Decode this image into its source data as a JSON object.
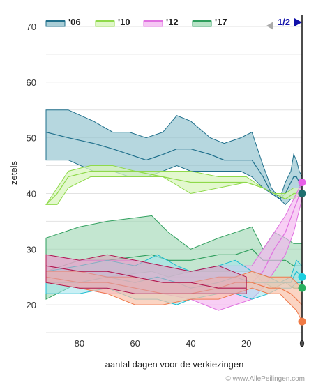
{
  "chart_data": {
    "type": "area",
    "title": "",
    "xlabel": "aantal dagen voor de verkiezingen",
    "ylabel": "zetels",
    "credit": "© www.AllePeilingen.com",
    "xlim": [
      92,
      0
    ],
    "ylim": [
      13,
      72
    ],
    "x_ticks": [
      80,
      60,
      40,
      20,
      0
    ],
    "y_ticks": [
      20,
      30,
      40,
      50,
      60,
      70
    ],
    "grid": "horizontal",
    "legend_position": "top",
    "legend": [
      {
        "label": "'06",
        "color": "#1f6f8b",
        "fill": "#a9cdd6"
      },
      {
        "label": "'10",
        "color": "#8fd94a",
        "fill": "#e0f7c8"
      },
      {
        "label": "'12",
        "color": "#e070e0",
        "fill": "#f6c7f4"
      },
      {
        "label": "'17",
        "color": "#2e9e5c",
        "fill": "#b7e3c6"
      }
    ],
    "pager": {
      "label": "1/2",
      "prev_color": "#aaaaaa",
      "next_color": "#1111aa"
    },
    "bands": [
      {
        "name": "'06",
        "color": "#1f6f8b",
        "fill": "#8fc1ce",
        "opacity": 0.65,
        "x": [
          92,
          84,
          75,
          68,
          62,
          56,
          50,
          45,
          40,
          33,
          28,
          22,
          18,
          14,
          11,
          8,
          6,
          4,
          3,
          2,
          1,
          0
        ],
        "upper": [
          55,
          55,
          53,
          51,
          51,
          50,
          51,
          54,
          53,
          50,
          49,
          50,
          51,
          45,
          41,
          39,
          42,
          44,
          47,
          46,
          44,
          43
        ],
        "lower": [
          46,
          46,
          44,
          44,
          43,
          43,
          44,
          45,
          44,
          44,
          44,
          44,
          43,
          41,
          40,
          39,
          38,
          39,
          39,
          40,
          40,
          40
        ],
        "mid": [
          51,
          50,
          49,
          48,
          47,
          46,
          47,
          48,
          48,
          47,
          46,
          46,
          46,
          43,
          40,
          39,
          40,
          42,
          43,
          43,
          42,
          40
        ]
      },
      {
        "name": "'10",
        "color": "#8fd94a",
        "fill": "#d9f5bd",
        "opacity": 0.75,
        "x": [
          92,
          88,
          84,
          76,
          68,
          60,
          50,
          40,
          30,
          20,
          14,
          10,
          6,
          3,
          0
        ],
        "upper": [
          38,
          41,
          44,
          45,
          45,
          44,
          44,
          44,
          43,
          43,
          41,
          40,
          40,
          41,
          41
        ],
        "lower": [
          38,
          38,
          41,
          43,
          43,
          43,
          43,
          40,
          41,
          42,
          41,
          40,
          39,
          39,
          40
        ],
        "mid": [
          38,
          40,
          43,
          44,
          44,
          44,
          43,
          42,
          42,
          42,
          41,
          40,
          39,
          40,
          40
        ]
      },
      {
        "name": "'17",
        "color": "#2e9e5c",
        "fill": "#9bd6b0",
        "opacity": 0.6,
        "x": [
          92,
          80,
          70,
          54,
          48,
          40,
          30,
          24,
          18,
          14,
          10,
          6,
          3,
          0
        ],
        "upper": [
          32,
          34,
          35,
          36,
          33,
          30,
          32,
          33,
          34,
          30,
          33,
          32,
          31,
          31
        ],
        "lower": [
          21,
          24,
          25,
          26,
          25,
          26,
          26,
          26,
          26,
          24,
          23,
          24,
          23,
          23
        ],
        "mid": [
          26,
          28,
          28,
          29,
          28,
          28,
          29,
          29,
          30,
          28,
          28,
          28,
          27,
          27
        ]
      },
      {
        "name": "'12",
        "color": "#e070e0",
        "fill": "#f4b6f0",
        "opacity": 0.65,
        "x": [
          92,
          80,
          70,
          60,
          50,
          40,
          30,
          24,
          18,
          14,
          10,
          6,
          3,
          0
        ],
        "upper": [
          29,
          28,
          28,
          28,
          27,
          26,
          27,
          27,
          27,
          30,
          33,
          36,
          39,
          42
        ],
        "lower": [
          24,
          23,
          22,
          22,
          22,
          21,
          19,
          20,
          21,
          23,
          26,
          29,
          33,
          39
        ],
        "mid": [
          27,
          26,
          25,
          25,
          24,
          24,
          23,
          24,
          24,
          26,
          30,
          33,
          37,
          41
        ]
      },
      {
        "name": "cyan",
        "color": "#19bccf",
        "fill": "#9fe4ec",
        "opacity": 0.55,
        "x": [
          92,
          80,
          70,
          60,
          52,
          45,
          40,
          30,
          24,
          18,
          12,
          8,
          4,
          2,
          0
        ],
        "upper": [
          26,
          27,
          28,
          27,
          29,
          27,
          26,
          27,
          28,
          26,
          25,
          24,
          25,
          28,
          27
        ],
        "lower": [
          22,
          22,
          23,
          21,
          21,
          20,
          21,
          22,
          22,
          21,
          22,
          23,
          23,
          24,
          24
        ],
        "mid": [
          24,
          24,
          25,
          24,
          25,
          24,
          23,
          24,
          25,
          24,
          24,
          24,
          24,
          26,
          25
        ]
      },
      {
        "name": "orange",
        "color": "#ef7a4c",
        "fill": "#f9c2aa",
        "opacity": 0.7,
        "x": [
          92,
          80,
          70,
          60,
          50,
          40,
          30,
          24,
          18,
          12,
          8,
          4,
          2,
          0
        ],
        "upper": [
          26,
          26,
          25,
          25,
          24,
          24,
          25,
          25,
          26,
          25,
          25,
          25,
          24,
          23
        ],
        "lower": [
          24,
          23,
          22,
          20,
          20,
          21,
          21,
          22,
          23,
          22,
          22,
          20,
          19,
          17
        ],
        "mid": [
          25,
          24,
          24,
          23,
          22,
          22,
          23,
          24,
          24,
          23,
          23,
          22,
          21,
          20
        ]
      },
      {
        "name": "crimson",
        "color": "#b0174f",
        "fill": "#d9a3b8",
        "opacity": 0.55,
        "x": [
          92,
          80,
          70,
          60,
          50,
          40,
          30,
          20
        ],
        "upper": [
          29,
          28,
          29,
          28,
          27,
          26,
          27,
          25
        ],
        "lower": [
          24,
          23,
          23,
          22,
          22,
          22,
          22,
          22
        ],
        "mid": [
          27,
          26,
          26,
          25,
          24,
          24,
          23,
          23
        ]
      }
    ],
    "end_points": [
      {
        "name": "'12",
        "value": 42,
        "color": "#e860e8"
      },
      {
        "name": "'06",
        "value": 40,
        "color": "#1f6f6f"
      },
      {
        "name": "cyan",
        "value": 25,
        "color": "#1ccfe0"
      },
      {
        "name": "'17",
        "value": 23,
        "color": "#28b060"
      },
      {
        "name": "orange",
        "value": 17,
        "color": "#f07a45"
      }
    ]
  }
}
